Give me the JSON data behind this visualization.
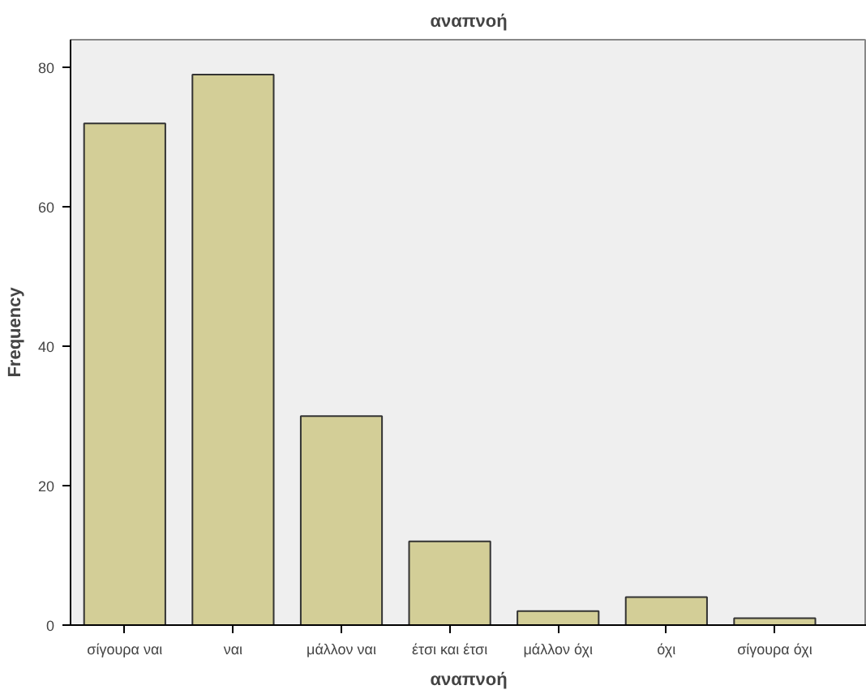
{
  "chart_data": {
    "type": "bar",
    "title": "αναπνοή",
    "xlabel": "αναπνοή",
    "ylabel": "Frequency",
    "categories": [
      "σίγουρα ναι",
      "ναι",
      "μάλλον ναι",
      "έτσι και έτσι",
      "μάλλον όχι",
      "όχι",
      "σίγουρα όχι"
    ],
    "values": [
      72,
      79,
      30,
      12,
      2,
      4,
      1
    ],
    "color": "#d3ce97",
    "ylim": [
      0,
      84
    ],
    "yticks": [
      0,
      20,
      40,
      60,
      80
    ],
    "grid": false
  }
}
